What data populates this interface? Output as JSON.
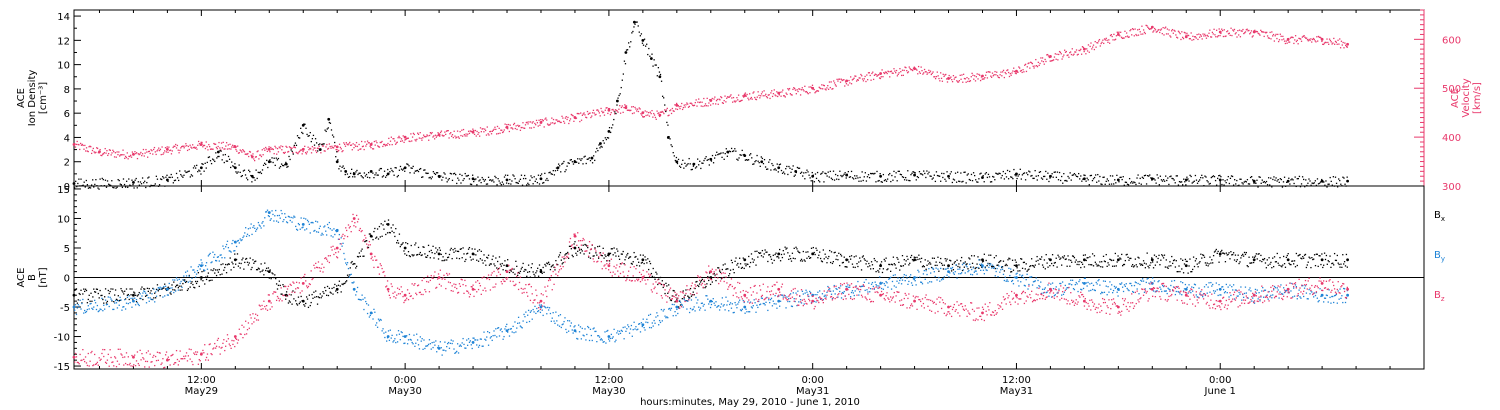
{
  "figure": {
    "xlabel": "hours:minutes, May 29, 2010 - June 1, 2010",
    "x_ticks": [
      {
        "t": 12,
        "time": "12:00",
        "date": "May29"
      },
      {
        "t": 24,
        "time": "0:00",
        "date": "May30"
      },
      {
        "t": 36,
        "time": "12:00",
        "date": "May30"
      },
      {
        "t": 48,
        "time": "0:00",
        "date": "May31"
      },
      {
        "t": 60,
        "time": "12:00",
        "date": "May31"
      },
      {
        "t": 72,
        "time": "0:00",
        "date": "June 1"
      }
    ],
    "xlim": [
      4.5,
      84
    ],
    "colors": {
      "black": "#000000",
      "pink": "#e8386b",
      "blue": "#1e83d6"
    }
  },
  "chart_data": [
    {
      "type": "scatter",
      "panel": "top",
      "left_axis_label_lines": [
        "ACE",
        "Ion Density",
        "[cm⁻³]"
      ],
      "right_axis_label_lines": [
        "ACE",
        "Velocity",
        "[km/s]"
      ],
      "ylim_left": [
        0,
        14.5
      ],
      "yticks_left": [
        0,
        2,
        4,
        6,
        8,
        10,
        12,
        14
      ],
      "ylim_right": [
        300,
        660
      ],
      "yticks_right": [
        300,
        400,
        500,
        600
      ],
      "x_units": "hours since 2010-05-29 00:00 UT",
      "series": [
        {
          "name": "Ion Density",
          "axis": "left",
          "color": "#000000",
          "x": [
            4.5,
            8,
            10,
            12,
            13,
            14,
            15,
            16,
            17,
            18,
            19,
            19.5,
            20,
            20.5,
            21,
            22,
            23,
            24,
            26,
            28,
            30,
            32,
            33,
            34,
            35,
            35.5,
            36,
            36.5,
            37,
            37.5,
            38,
            38.5,
            39,
            39.5,
            40,
            41,
            42,
            43,
            44,
            45,
            46,
            47,
            48,
            50,
            52,
            54,
            56,
            58,
            60,
            62,
            64,
            66,
            68,
            70,
            72,
            74,
            76,
            78,
            79.5
          ],
          "y": [
            0.2,
            0.3,
            0.5,
            1.5,
            2.8,
            1.5,
            0.8,
            2.0,
            1.8,
            5.0,
            3.0,
            5.5,
            2.0,
            1.2,
            1.0,
            1.2,
            1.0,
            1.5,
            0.8,
            0.6,
            0.5,
            0.6,
            1.5,
            2.0,
            2.3,
            3.5,
            4.5,
            7.0,
            11.0,
            13.5,
            12.0,
            10.5,
            9.0,
            4.0,
            2.0,
            1.8,
            2.2,
            2.8,
            2.5,
            2.0,
            1.5,
            1.2,
            0.8,
            0.9,
            0.8,
            0.9,
            0.8,
            0.7,
            1.0,
            0.8,
            0.6,
            0.5,
            0.6,
            0.5,
            0.5,
            0.4,
            0.4,
            0.4,
            0.4
          ]
        },
        {
          "name": "Velocity",
          "axis": "right",
          "color": "#e8386b",
          "x": [
            4.5,
            6,
            8,
            10,
            12,
            14,
            15,
            16,
            18,
            20,
            22,
            24,
            26,
            28,
            30,
            32,
            34,
            36,
            37,
            38,
            39,
            40,
            42,
            44,
            46,
            48,
            50,
            52,
            54,
            56,
            58,
            60,
            62,
            64,
            66,
            68,
            70,
            72,
            74,
            76,
            78,
            79.5
          ],
          "y": [
            385,
            370,
            365,
            375,
            385,
            380,
            360,
            375,
            375,
            380,
            385,
            400,
            405,
            410,
            420,
            430,
            440,
            455,
            460,
            450,
            445,
            465,
            475,
            485,
            490,
            500,
            515,
            530,
            540,
            520,
            525,
            535,
            565,
            580,
            610,
            625,
            605,
            615,
            615,
            600,
            600,
            590
          ]
        }
      ]
    },
    {
      "type": "scatter",
      "panel": "bottom",
      "left_axis_label_lines": [
        "ACE",
        "B",
        "[nT]"
      ],
      "ylim": [
        -15.5,
        15.5
      ],
      "yticks": [
        -15,
        -10,
        -5,
        0,
        5,
        10,
        15
      ],
      "zero_line": true,
      "legend_placement": "right, vertical",
      "x_units": "hours since 2010-05-29 00:00 UT",
      "series": [
        {
          "name": "Bx",
          "legend_base": "B",
          "legend_sub": "x",
          "color": "#000000",
          "x": [
            4.5,
            8,
            10,
            12,
            14,
            16,
            17,
            18,
            20,
            22,
            23,
            24,
            26,
            28,
            30,
            32,
            34,
            36,
            38,
            40,
            42,
            44,
            46,
            48,
            50,
            52,
            54,
            56,
            58,
            60,
            62,
            64,
            66,
            68,
            70,
            72,
            74,
            76,
            78,
            79.5
          ],
          "y": [
            -3,
            -3,
            -2,
            0,
            3,
            1,
            -3,
            -4,
            -2,
            7,
            9,
            5,
            4,
            4,
            2,
            1,
            5,
            4,
            3,
            -4,
            0,
            3,
            4,
            4,
            3,
            2,
            3,
            2,
            3,
            2,
            3,
            3,
            3,
            3,
            2,
            4,
            3,
            3,
            3,
            3
          ]
        },
        {
          "name": "By",
          "legend_base": "B",
          "legend_sub": "y",
          "color": "#1e83d6",
          "x": [
            4.5,
            8,
            10,
            12,
            14,
            16,
            18,
            20,
            21,
            22,
            23,
            24,
            26,
            28,
            30,
            32,
            34,
            36,
            38,
            40,
            42,
            44,
            46,
            48,
            50,
            52,
            54,
            56,
            58,
            60,
            62,
            64,
            66,
            68,
            70,
            72,
            74,
            76,
            78,
            79.5
          ],
          "y": [
            -5,
            -4,
            -2,
            2,
            6,
            11,
            9,
            8,
            -2,
            -6,
            -10,
            -10,
            -12,
            -11,
            -9,
            -5,
            -9,
            -10,
            -8,
            -5,
            -4,
            -5,
            -4,
            -3,
            -2,
            -1,
            0,
            1,
            2,
            0,
            -2,
            -1,
            -2,
            -1,
            -2,
            -2,
            -3,
            -2,
            -3,
            -3
          ]
        },
        {
          "name": "Bz",
          "legend_base": "B",
          "legend_sub": "z",
          "color": "#e8386b",
          "x": [
            4.5,
            8,
            10,
            12,
            14,
            16,
            18,
            20,
            21,
            22,
            23,
            24,
            26,
            28,
            30,
            32,
            34,
            36,
            38,
            40,
            42,
            44,
            46,
            48,
            50,
            52,
            54,
            56,
            58,
            60,
            62,
            64,
            66,
            68,
            70,
            72,
            74,
            76,
            78,
            79.5
          ],
          "y": [
            -13.5,
            -13.5,
            -14,
            -13,
            -10,
            -4,
            -1,
            5,
            10,
            4,
            -2,
            -3,
            0,
            -2,
            1,
            -4,
            7,
            2,
            0,
            -4,
            1,
            -3,
            -2,
            -4,
            -2,
            -3,
            -4,
            -5,
            -6,
            -3,
            -2,
            -4,
            -5,
            -2,
            -3,
            -4,
            -3,
            -2,
            -1,
            -2
          ]
        }
      ]
    }
  ]
}
